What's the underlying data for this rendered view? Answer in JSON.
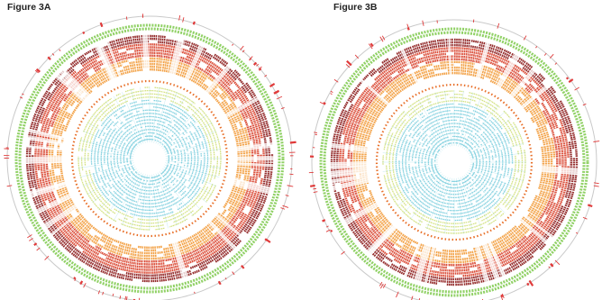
{
  "figure": {
    "panel_a": {
      "title": "Figure 3A"
    },
    "panel_b": {
      "title": "Figure 3B"
    }
  },
  "colors": {
    "outer_marks": "#e03a3a",
    "outer_ring": "#c9c9c9",
    "green_track": "#7cc94a",
    "dark_red_band": "#8b1a1a",
    "red_band": "#d8402a",
    "orange_band": "#f29b3a",
    "orange_dot_ring": "#e8702a",
    "yellow_green_band": "#c6d85a",
    "cyan_band": "#5ec3d6"
  }
}
